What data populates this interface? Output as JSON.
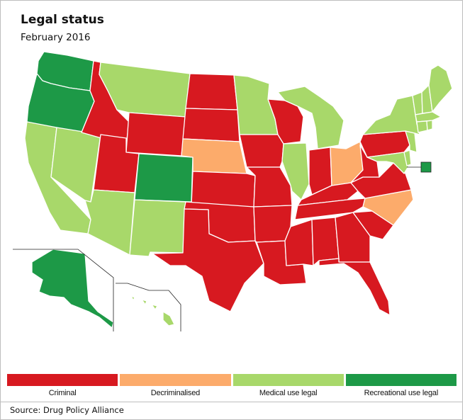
{
  "title": "Legal status",
  "subtitle": "February 2016",
  "source": "Source: Drug Policy Alliance",
  "colors": {
    "criminal": "#d71920",
    "decriminalised": "#fcab6b",
    "medical": "#a8d86a",
    "recreational": "#1d9947"
  },
  "legend": [
    {
      "key": "criminal",
      "label": "Criminal"
    },
    {
      "key": "decriminalised",
      "label": "Decriminalised"
    },
    {
      "key": "medical",
      "label": "Medical use legal"
    },
    {
      "key": "recreational",
      "label": "Recreational use legal"
    }
  ],
  "states": {
    "WA": "recreational",
    "OR": "recreational",
    "AK": "recreational",
    "CO": "recreational",
    "DC": "recreational",
    "CA": "medical",
    "NV": "medical",
    "AZ": "medical",
    "NM": "medical",
    "MT": "medical",
    "MN": "medical",
    "IL": "medical",
    "MI": "medical",
    "HI": "medical",
    "NY": "medical",
    "VT": "medical",
    "NH": "medical",
    "ME": "medical",
    "MA": "medical",
    "RI": "medical",
    "CT": "medical",
    "NJ": "medical",
    "DE": "medical",
    "MD": "medical",
    "NE": "decriminalised",
    "OH": "decriminalised",
    "NC": "decriminalised",
    "ID": "criminal",
    "WY": "criminal",
    "UT": "criminal",
    "ND": "criminal",
    "SD": "criminal",
    "KS": "criminal",
    "OK": "criminal",
    "TX": "criminal",
    "IA": "criminal",
    "MO": "criminal",
    "AR": "criminal",
    "LA": "criminal",
    "WI": "criminal",
    "IN": "criminal",
    "KY": "criminal",
    "TN": "criminal",
    "MS": "criminal",
    "AL": "criminal",
    "GA": "criminal",
    "FL": "criminal",
    "SC": "criminal",
    "WV": "criminal",
    "VA": "criminal",
    "PA": "criminal"
  }
}
